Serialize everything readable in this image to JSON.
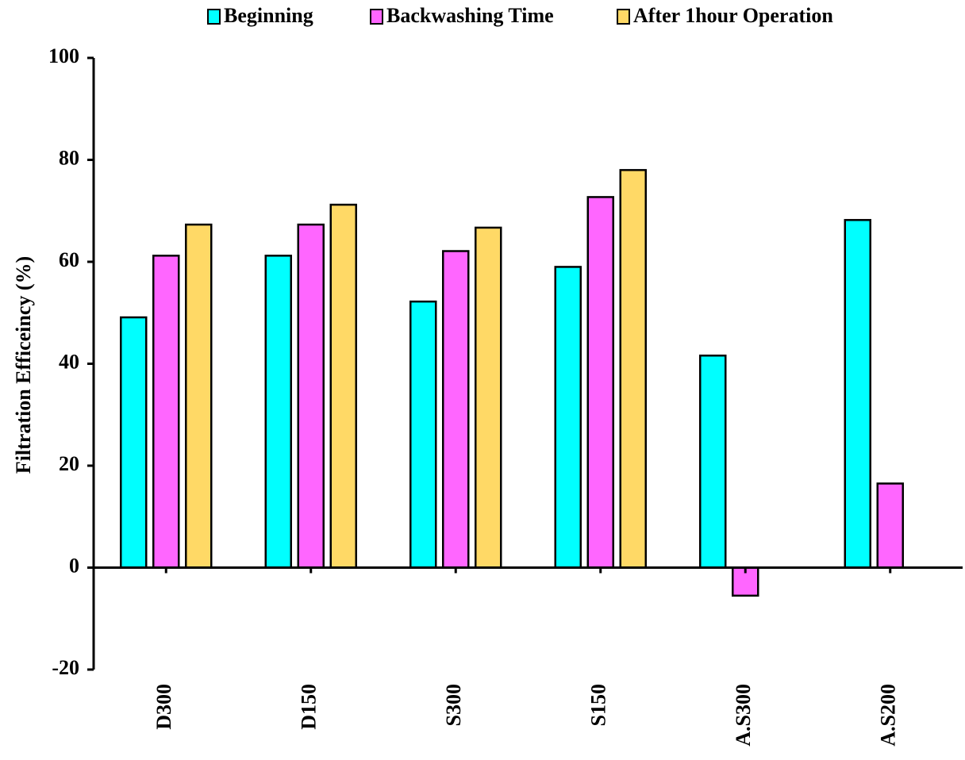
{
  "chart_data": {
    "type": "bar",
    "y_label": "Filtration Efficeincy (%)",
    "categories": [
      "D300",
      "D150",
      "S300",
      "S150",
      "A.S300",
      "A.S200"
    ],
    "series": [
      {
        "name": "Beginning",
        "color": "#00ffff",
        "values": [
          49.1,
          61.2,
          52.2,
          59,
          41.6,
          68.2
        ]
      },
      {
        "name": "Backwashing Time",
        "color": "#ff66ff",
        "values": [
          61.2,
          67.3,
          62.1,
          72.7,
          -5.5,
          16.5
        ]
      },
      {
        "name": "After 1hour Operation",
        "color": "#ffd966",
        "values": [
          67.3,
          71.2,
          66.7,
          78,
          null,
          null
        ]
      }
    ],
    "ylim": [
      -20,
      100
    ],
    "yticks": [
      -20,
      0,
      20,
      40,
      60,
      80,
      100
    ]
  }
}
